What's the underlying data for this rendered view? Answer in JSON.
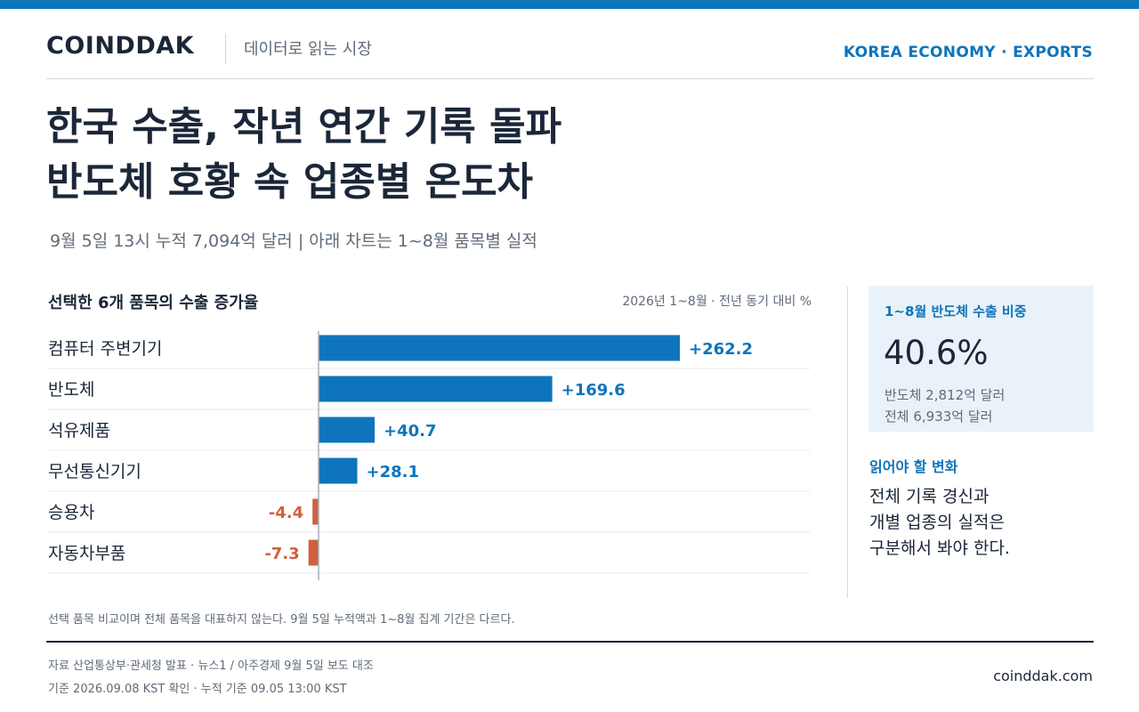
{
  "header": {
    "brand": "COINDDAK",
    "tagline": "데이터로 읽는 시장",
    "section": "KOREA ECONOMY · EXPORTS"
  },
  "headline": {
    "line1": "한국 수출, 작년 연간 기록 돌파",
    "line2": "반도체 호황 속 업종별 온도차"
  },
  "subheadline": "9월 5일 13시 누적 7,094억 달러 | 아래 차트는 1~8월 품목별 실적",
  "colors": {
    "accent": "#0e74bb",
    "positive": "#0e74bb",
    "negative": "#d0603e",
    "text": "#1b2738",
    "muted": "#5f6b79"
  },
  "chart_data": {
    "type": "bar",
    "orientation": "horizontal",
    "title": "선택한 6개 품목의 수출 증가율",
    "unit_note": "2026년 1~8월 · 전년 동기 대비 %",
    "categories": [
      "컴퓨터 주변기기",
      "반도체",
      "석유제품",
      "무선통신기기",
      "승용차",
      "자동차부품"
    ],
    "values": [
      262.2,
      169.6,
      40.7,
      28.1,
      -4.4,
      -7.3
    ],
    "labels": [
      "+262.2",
      "+169.6",
      "+40.7",
      "+28.1",
      "-4.4",
      "-7.3"
    ],
    "xlim": [
      -10,
      300
    ],
    "grid": false,
    "legend": "none"
  },
  "stat": {
    "label": "1~8월 반도체 수출 비중",
    "value": "40.6%",
    "line1": "반도체 2,812억 달러",
    "line2": "전체 6,933억 달러"
  },
  "change": {
    "label": "읽어야 할 변화",
    "line1": "전체 기록 경신과",
    "line2": "개별 업종의 실적은",
    "line3": "구분해서 봐야 한다."
  },
  "footer": {
    "note": "선택 품목 비교이며 전체 품목을 대표하지 않는다. 9월 5일 누적액과 1~8월 집계 기간은 다르다.",
    "source": "자료  산업통상부·관세청 발표 · 뉴스1 / 아주경제 9월 5일 보도 대조",
    "basis": "기준  2026.09.08 KST 확인 · 누적 기준 09.05 13:00 KST",
    "site": "coinddak.com"
  }
}
